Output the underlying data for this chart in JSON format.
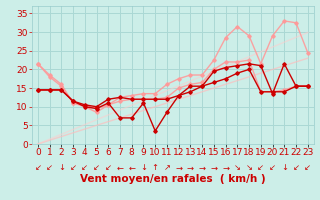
{
  "x": [
    0,
    1,
    2,
    3,
    4,
    5,
    6,
    7,
    8,
    9,
    10,
    11,
    12,
    13,
    14,
    15,
    16,
    17,
    18,
    19,
    20,
    21,
    22,
    23
  ],
  "background_color": "#cceee8",
  "grid_color": "#aad8d4",
  "xlabel": "Vent moyen/en rafales  ( km/h )",
  "xlabel_color": "#cc0000",
  "xlabel_fontsize": 7.5,
  "ylim": [
    0,
    37
  ],
  "yticks": [
    0,
    5,
    10,
    15,
    20,
    25,
    30,
    35
  ],
  "lines_light": [
    {
      "y": [
        21.5,
        18.5,
        16.0,
        11.0,
        10.0,
        8.5,
        10.5,
        11.5,
        12.0,
        12.0,
        12.0,
        12.5,
        15.0,
        16.0,
        16.5,
        20.0,
        22.0,
        22.0,
        22.5,
        14.0,
        14.0,
        14.5,
        15.5,
        15.5
      ],
      "color": "#ff9999",
      "lw": 1.0,
      "marker": "D",
      "ms": 1.8,
      "alpha": 0.9
    },
    {
      "y": [
        21.5,
        18.0,
        15.5,
        11.0,
        10.5,
        9.5,
        10.5,
        12.5,
        13.0,
        13.5,
        13.5,
        16.0,
        17.5,
        18.5,
        18.5,
        22.5,
        28.5,
        31.5,
        29.0,
        21.5,
        29.0,
        33.0,
        32.5,
        24.5
      ],
      "color": "#ff9999",
      "lw": 1.0,
      "marker": "D",
      "ms": 1.8,
      "alpha": 0.9
    }
  ],
  "lines_dark": [
    {
      "y": [
        14.5,
        14.5,
        14.5,
        11.5,
        10.0,
        9.5,
        11.0,
        7.0,
        7.0,
        11.0,
        3.5,
        8.5,
        13.0,
        15.5,
        15.5,
        19.5,
        20.5,
        21.0,
        21.5,
        21.0,
        13.5,
        21.5,
        15.5,
        15.5
      ],
      "color": "#cc0000",
      "lw": 1.0,
      "marker": "D",
      "ms": 1.8,
      "alpha": 1.0
    },
    {
      "y": [
        14.5,
        14.5,
        14.5,
        11.5,
        10.5,
        10.0,
        12.0,
        12.5,
        12.0,
        12.0,
        12.0,
        12.0,
        13.0,
        14.0,
        15.5,
        16.5,
        17.5,
        19.0,
        20.0,
        14.0,
        14.0,
        14.0,
        15.5,
        15.5
      ],
      "color": "#cc0000",
      "lw": 1.0,
      "marker": "D",
      "ms": 1.8,
      "alpha": 1.0
    }
  ],
  "ref_line1": [
    0.0,
    1.0,
    2.0,
    3.0,
    4.0,
    5.0,
    6.0,
    7.0,
    8.0,
    9.0,
    10.0,
    11.0,
    12.0,
    13.0,
    14.0,
    15.0,
    16.0,
    17.0,
    18.0,
    19.0,
    20.0,
    21.0,
    22.0,
    23.0
  ],
  "ref_line2": [
    0.0,
    1.3,
    2.6,
    3.9,
    5.2,
    6.5,
    7.8,
    9.1,
    10.4,
    11.7,
    13.0,
    14.3,
    15.6,
    16.9,
    18.2,
    19.5,
    20.8,
    22.1,
    23.4,
    24.7,
    26.0,
    27.3,
    28.6,
    29.9
  ],
  "arrow_symbols": [
    "↙",
    "↙",
    "↓",
    "↙",
    "↙",
    "↙",
    "↙",
    "←",
    "←",
    "↓",
    "↑",
    "↗",
    "→",
    "→",
    "→",
    "→",
    "→",
    "↘",
    "↘",
    "↙",
    "↙",
    "↓",
    "↙",
    "↙"
  ],
  "tick_color": "#cc0000",
  "tick_fontsize": 6.5,
  "arrow_fontsize": 6.0
}
